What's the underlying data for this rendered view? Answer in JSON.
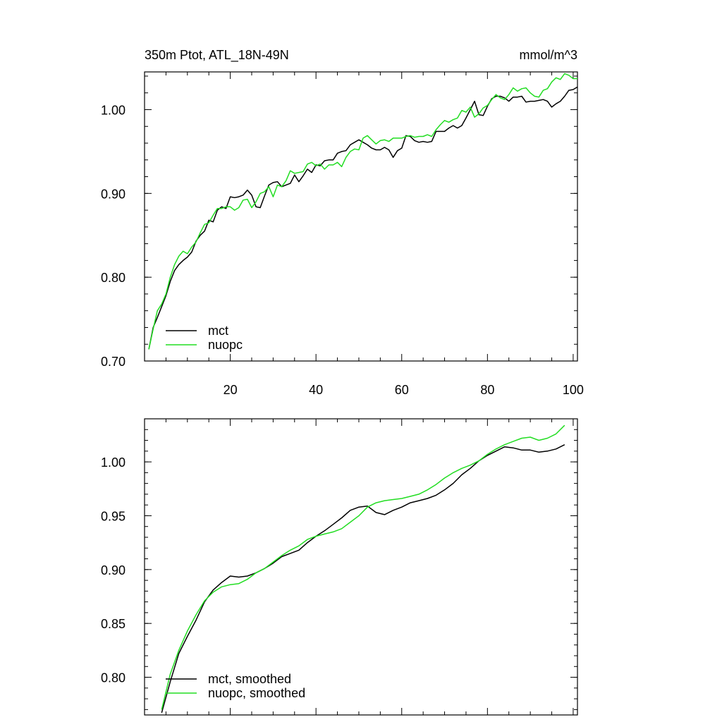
{
  "chart_data": [
    {
      "type": "line",
      "title": "350m Ptot, ATL_18N-49N",
      "units": "mmol/m^3",
      "xlabel": "",
      "ylabel": "",
      "xlim": [
        0,
        101
      ],
      "ylim": [
        0.7,
        1.045
      ],
      "xticks": [
        20,
        40,
        60,
        80,
        100
      ],
      "yticks": [
        0.7,
        0.8,
        0.9,
        1.0
      ],
      "xtick_labels": [
        "20",
        "40",
        "60",
        "80",
        "100"
      ],
      "ytick_labels": [
        "0.70",
        "0.80",
        "0.90",
        "1.00"
      ],
      "grid": false,
      "legend": "bottom-left",
      "series": [
        {
          "name": "mct",
          "color": "#000000",
          "values": [
            0.714,
            0.74,
            0.752,
            0.765,
            0.778,
            0.795,
            0.808,
            0.815,
            0.82,
            0.824,
            0.83,
            0.843,
            0.85,
            0.855,
            0.868,
            0.866,
            0.88,
            0.884,
            0.882,
            0.896,
            0.895,
            0.896,
            0.898,
            0.904,
            0.898,
            0.884,
            0.883,
            0.897,
            0.91,
            0.913,
            0.914,
            0.908,
            0.91,
            0.912,
            0.922,
            0.914,
            0.921,
            0.929,
            0.925,
            0.934,
            0.933,
            0.939,
            0.94,
            0.94,
            0.948,
            0.95,
            0.951,
            0.958,
            0.961,
            0.964,
            0.961,
            0.958,
            0.954,
            0.952,
            0.952,
            0.955,
            0.952,
            0.943,
            0.951,
            0.954,
            0.969,
            0.968,
            0.963,
            0.961,
            0.962,
            0.961,
            0.962,
            0.974,
            0.974,
            0.974,
            0.978,
            0.981,
            0.978,
            0.981,
            0.99,
            1.0,
            1.01,
            0.994,
            0.993,
            1.004,
            1.013,
            1.016,
            1.016,
            1.014,
            1.01,
            1.015,
            1.015,
            1.016,
            1.009,
            1.01,
            1.01,
            1.011,
            1.012,
            1.01,
            1.003,
            1.007,
            1.01,
            1.016,
            1.023,
            1.024,
            1.027
          ]
        },
        {
          "name": "nuopc",
          "color": "#22dd22",
          "values": [
            0.714,
            0.738,
            0.76,
            0.768,
            0.78,
            0.8,
            0.815,
            0.825,
            0.831,
            0.828,
            0.836,
            0.842,
            0.853,
            0.863,
            0.865,
            0.874,
            0.882,
            0.882,
            0.884,
            0.884,
            0.88,
            0.883,
            0.892,
            0.893,
            0.883,
            0.89,
            0.9,
            0.902,
            0.908,
            0.896,
            0.91,
            0.908,
            0.915,
            0.927,
            0.924,
            0.925,
            0.926,
            0.935,
            0.937,
            0.933,
            0.935,
            0.929,
            0.934,
            0.934,
            0.937,
            0.932,
            0.943,
            0.95,
            0.953,
            0.952,
            0.966,
            0.969,
            0.964,
            0.959,
            0.963,
            0.964,
            0.962,
            0.966,
            0.966,
            0.966,
            0.968,
            0.969,
            0.967,
            0.968,
            0.968,
            0.97,
            0.968,
            0.976,
            0.982,
            0.987,
            0.985,
            0.988,
            0.99,
            0.999,
            0.997,
            1.003,
            0.991,
            0.995,
            1.002,
            1.005,
            1.012,
            1.018,
            1.014,
            1.012,
            1.018,
            1.026,
            1.022,
            1.025,
            1.026,
            1.02,
            1.016,
            1.015,
            1.023,
            1.025,
            1.033,
            1.038,
            1.036,
            1.043,
            1.041,
            1.037,
            1.037
          ]
        }
      ]
    },
    {
      "type": "line",
      "title": "",
      "xlabel": "",
      "ylabel": "",
      "xlim": [
        0,
        101
      ],
      "ylim": [
        0.765,
        1.04
      ],
      "xticks": [
        20,
        40,
        60,
        80,
        100
      ],
      "yticks": [
        0.8,
        0.85,
        0.9,
        0.95,
        1.0
      ],
      "ytick_labels": [
        "0.80",
        "0.85",
        "0.90",
        "0.95",
        "1.00"
      ],
      "grid": false,
      "legend": "bottom-left",
      "series": [
        {
          "name": "mct, smoothed",
          "color": "#000000",
          "x": [
            4,
            6,
            8,
            10,
            12,
            14,
            16,
            18,
            20,
            22,
            24,
            26,
            28,
            30,
            32,
            34,
            36,
            38,
            40,
            42,
            44,
            46,
            48,
            50,
            52,
            54,
            56,
            58,
            60,
            62,
            64,
            66,
            68,
            70,
            72,
            74,
            76,
            78,
            80,
            82,
            84,
            86,
            88,
            90,
            92,
            94,
            96,
            98
          ],
          "values": [
            0.767,
            0.796,
            0.822,
            0.838,
            0.853,
            0.87,
            0.881,
            0.888,
            0.894,
            0.893,
            0.894,
            0.897,
            0.901,
            0.906,
            0.912,
            0.915,
            0.918,
            0.925,
            0.931,
            0.936,
            0.942,
            0.948,
            0.955,
            0.958,
            0.959,
            0.953,
            0.951,
            0.955,
            0.958,
            0.962,
            0.964,
            0.966,
            0.969,
            0.974,
            0.98,
            0.988,
            0.994,
            1.001,
            1.006,
            1.01,
            1.014,
            1.013,
            1.011,
            1.011,
            1.009,
            1.01,
            1.012,
            1.016
          ]
        },
        {
          "name": "nuopc, smoothed",
          "color": "#22dd22",
          "x": [
            4,
            6,
            8,
            10,
            12,
            14,
            16,
            18,
            20,
            22,
            24,
            26,
            28,
            30,
            32,
            34,
            36,
            38,
            40,
            42,
            44,
            46,
            48,
            50,
            52,
            54,
            56,
            58,
            60,
            62,
            64,
            66,
            68,
            70,
            72,
            74,
            76,
            78,
            80,
            82,
            84,
            86,
            88,
            90,
            92,
            94,
            96,
            98
          ],
          "values": [
            0.77,
            0.803,
            0.825,
            0.843,
            0.858,
            0.871,
            0.879,
            0.884,
            0.886,
            0.887,
            0.891,
            0.897,
            0.901,
            0.907,
            0.913,
            0.918,
            0.922,
            0.928,
            0.931,
            0.933,
            0.935,
            0.938,
            0.944,
            0.95,
            0.958,
            0.962,
            0.964,
            0.965,
            0.966,
            0.968,
            0.97,
            0.974,
            0.979,
            0.985,
            0.99,
            0.994,
            0.997,
            1.001,
            1.007,
            1.012,
            1.016,
            1.019,
            1.022,
            1.023,
            1.02,
            1.022,
            1.026,
            1.034
          ]
        }
      ]
    }
  ]
}
